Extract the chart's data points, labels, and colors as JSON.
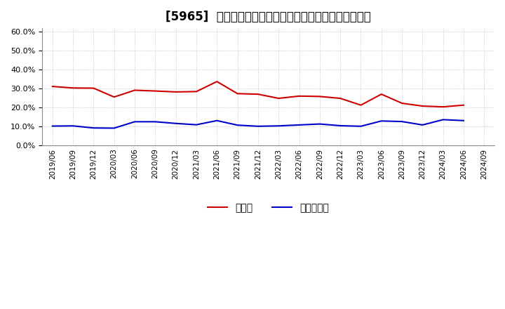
{
  "title": "[5965]  現預金、有利子負債の総資産に対する比率の推移",
  "x_labels": [
    "2019/06",
    "2019/09",
    "2019/12",
    "2020/03",
    "2020/06",
    "2020/09",
    "2020/12",
    "2021/03",
    "2021/06",
    "2021/09",
    "2021/12",
    "2022/03",
    "2022/06",
    "2022/09",
    "2022/12",
    "2023/03",
    "2023/06",
    "2023/09",
    "2023/12",
    "2024/03",
    "2024/06",
    "2024/09"
  ],
  "cash_values": [
    0.311,
    0.303,
    0.302,
    0.255,
    0.291,
    0.287,
    0.282,
    0.284,
    0.337,
    0.273,
    0.27,
    0.248,
    0.26,
    0.258,
    0.248,
    0.212,
    0.27,
    0.222,
    0.207,
    0.203,
    0.212,
    null
  ],
  "debt_values": [
    0.101,
    0.102,
    0.091,
    0.09,
    0.124,
    0.124,
    0.115,
    0.108,
    0.13,
    0.106,
    0.1,
    0.102,
    0.107,
    0.112,
    0.103,
    0.1,
    0.128,
    0.125,
    0.107,
    0.135,
    0.13,
    null
  ],
  "cash_color": "#cc0000",
  "debt_color": "#0000cc",
  "background_color": "#ffffff",
  "grid_color": "#bbbbbb",
  "ylim": [
    0.0,
    0.62
  ],
  "yticks": [
    0.0,
    0.1,
    0.2,
    0.3,
    0.4,
    0.5,
    0.6
  ],
  "legend_cash": "現預金",
  "legend_debt": "有利子負債",
  "title_fontsize": 12
}
